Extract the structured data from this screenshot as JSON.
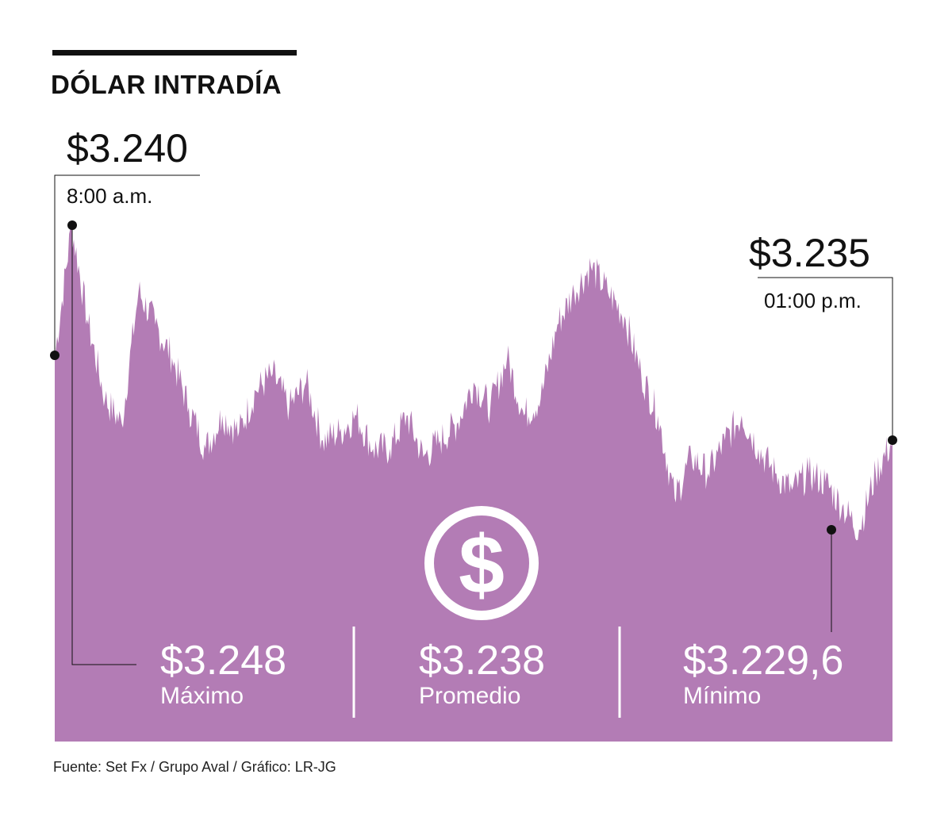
{
  "header": {
    "title": "DÓLAR INTRADÍA"
  },
  "open_callout": {
    "value": "$3.240",
    "time": "8:00 a.m."
  },
  "close_callout": {
    "value": "$3.235",
    "time": "01:00 p.m."
  },
  "stats": [
    {
      "value": "$3.248",
      "label": "Máximo"
    },
    {
      "value": "$3.238",
      "label": "Promedio"
    },
    {
      "value": "$3.229,6",
      "label": "Mínimo"
    }
  ],
  "source": "Fuente: Set Fx / Grupo Aval / Gráfico: LR-JG",
  "icon": "dollar-coin-icon",
  "colors": {
    "area": "#b37cb5",
    "text": "#111111",
    "white": "#ffffff"
  },
  "chart_data": {
    "type": "area",
    "title": "DÓLAR INTRADÍA",
    "xlabel": "",
    "ylabel": "",
    "x_range": [
      "8:00 a.m.",
      "01:00 p.m."
    ],
    "ylim": [
      3224,
      3251
    ],
    "series": [
      {
        "name": "Dólar",
        "x": [
          0.0,
          0.02,
          0.04,
          0.06,
          0.08,
          0.1,
          0.12,
          0.14,
          0.16,
          0.18,
          0.2,
          0.22,
          0.24,
          0.26,
          0.28,
          0.3,
          0.32,
          0.34,
          0.36,
          0.38,
          0.4,
          0.42,
          0.44,
          0.46,
          0.48,
          0.5,
          0.52,
          0.54,
          0.56,
          0.58,
          0.6,
          0.62,
          0.64,
          0.66,
          0.68,
          0.7,
          0.72,
          0.74,
          0.76,
          0.78,
          0.8,
          0.82,
          0.84,
          0.86,
          0.88,
          0.9,
          0.92,
          0.94,
          0.96,
          0.98,
          1.0
        ],
        "values": [
          3240.0,
          3248.0,
          3242.0,
          3237.5,
          3236.0,
          3244.0,
          3242.0,
          3240.0,
          3237.0,
          3234.5,
          3236.5,
          3235.5,
          3238.0,
          3239.0,
          3237.0,
          3238.5,
          3235.0,
          3235.5,
          3236.5,
          3234.5,
          3234.5,
          3236.5,
          3234.0,
          3235.0,
          3236.0,
          3238.5,
          3237.0,
          3240.0,
          3236.5,
          3237.5,
          3242.0,
          3244.0,
          3245.5,
          3244.0,
          3242.5,
          3239.0,
          3236.5,
          3231.5,
          3234.0,
          3233.0,
          3235.0,
          3236.5,
          3234.5,
          3233.0,
          3232.0,
          3233.0,
          3232.5,
          3231.0,
          3229.6,
          3233.0,
          3235.0
        ]
      }
    ],
    "annotations": [
      {
        "label": "max",
        "x": 0.02,
        "value": 3248.0
      },
      {
        "label": "open",
        "x": 0.0,
        "value": 3240.0
      },
      {
        "label": "close",
        "x": 1.0,
        "value": 3235.0
      },
      {
        "label": "min",
        "x": 0.93,
        "value": 3229.6
      }
    ]
  }
}
